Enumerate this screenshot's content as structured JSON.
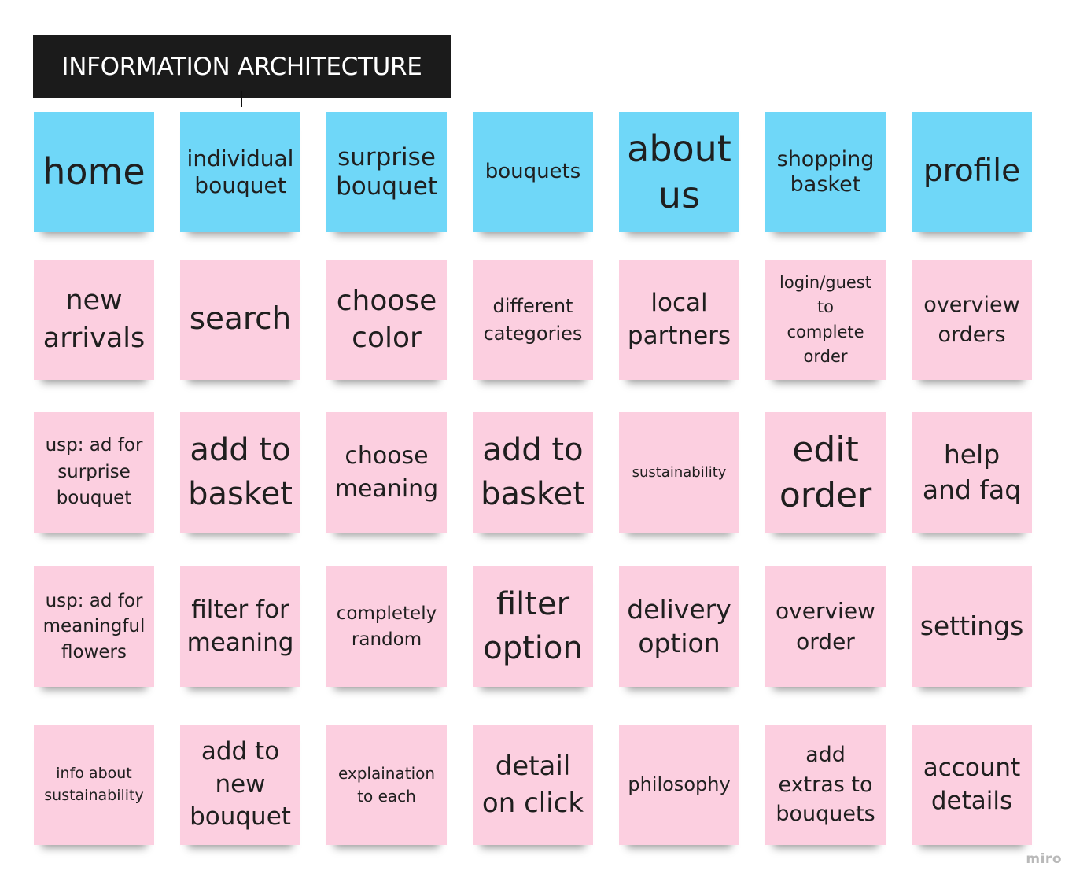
{
  "title": "INFORMATION ARCHITECTURE",
  "watermark": "miro",
  "colors": {
    "blue_note": "#6fd7f8",
    "pink_note": "#fccfe0",
    "title_bg": "#1b1b1b"
  },
  "notes": {
    "home": "home",
    "individual_bouquet": "individual\nbouquet",
    "surprise_bouquet": "surprise\nbouquet",
    "bouquets": "bouquets",
    "about_us": "about\nus",
    "shopping_basket": "shopping\nbasket",
    "profile": "profile",
    "new_arrivals": "new\narrivals",
    "search": "search",
    "choose_color": "choose\ncolor",
    "different_categories": "different\ncategories",
    "local_partners": "local\npartners",
    "login_guest": "login/guest\nto\ncomplete\norder",
    "overview_orders": "overview\norders",
    "usp_surprise": "usp: ad for\nsurprise\nbouquet",
    "add_to_basket_1": "add to\nbasket",
    "choose_meaning": "choose\nmeaning",
    "add_to_basket_2": "add to\nbasket",
    "sustainability": "sustainability",
    "edit_order": "edit\norder",
    "help_faq": "help\nand faq",
    "usp_meaningful": "usp: ad for\nmeaningful\nflowers",
    "filter_meaning": "filter for\nmeaning",
    "completely_random": "completely\nrandom",
    "filter_option": "filter\noption",
    "delivery_option": "delivery\noption",
    "overview_order": "overview\norder",
    "settings": "settings",
    "info_sustainability": "info about\nsustainability",
    "add_new_bouquet": "add to\nnew\nbouquet",
    "explanation_each": "explaination\nto each",
    "detail_on_click": "detail\non click",
    "philosophy": "philosophy",
    "add_extras": "add\nextras to\nbouquets",
    "account_details": "account\ndetails"
  }
}
